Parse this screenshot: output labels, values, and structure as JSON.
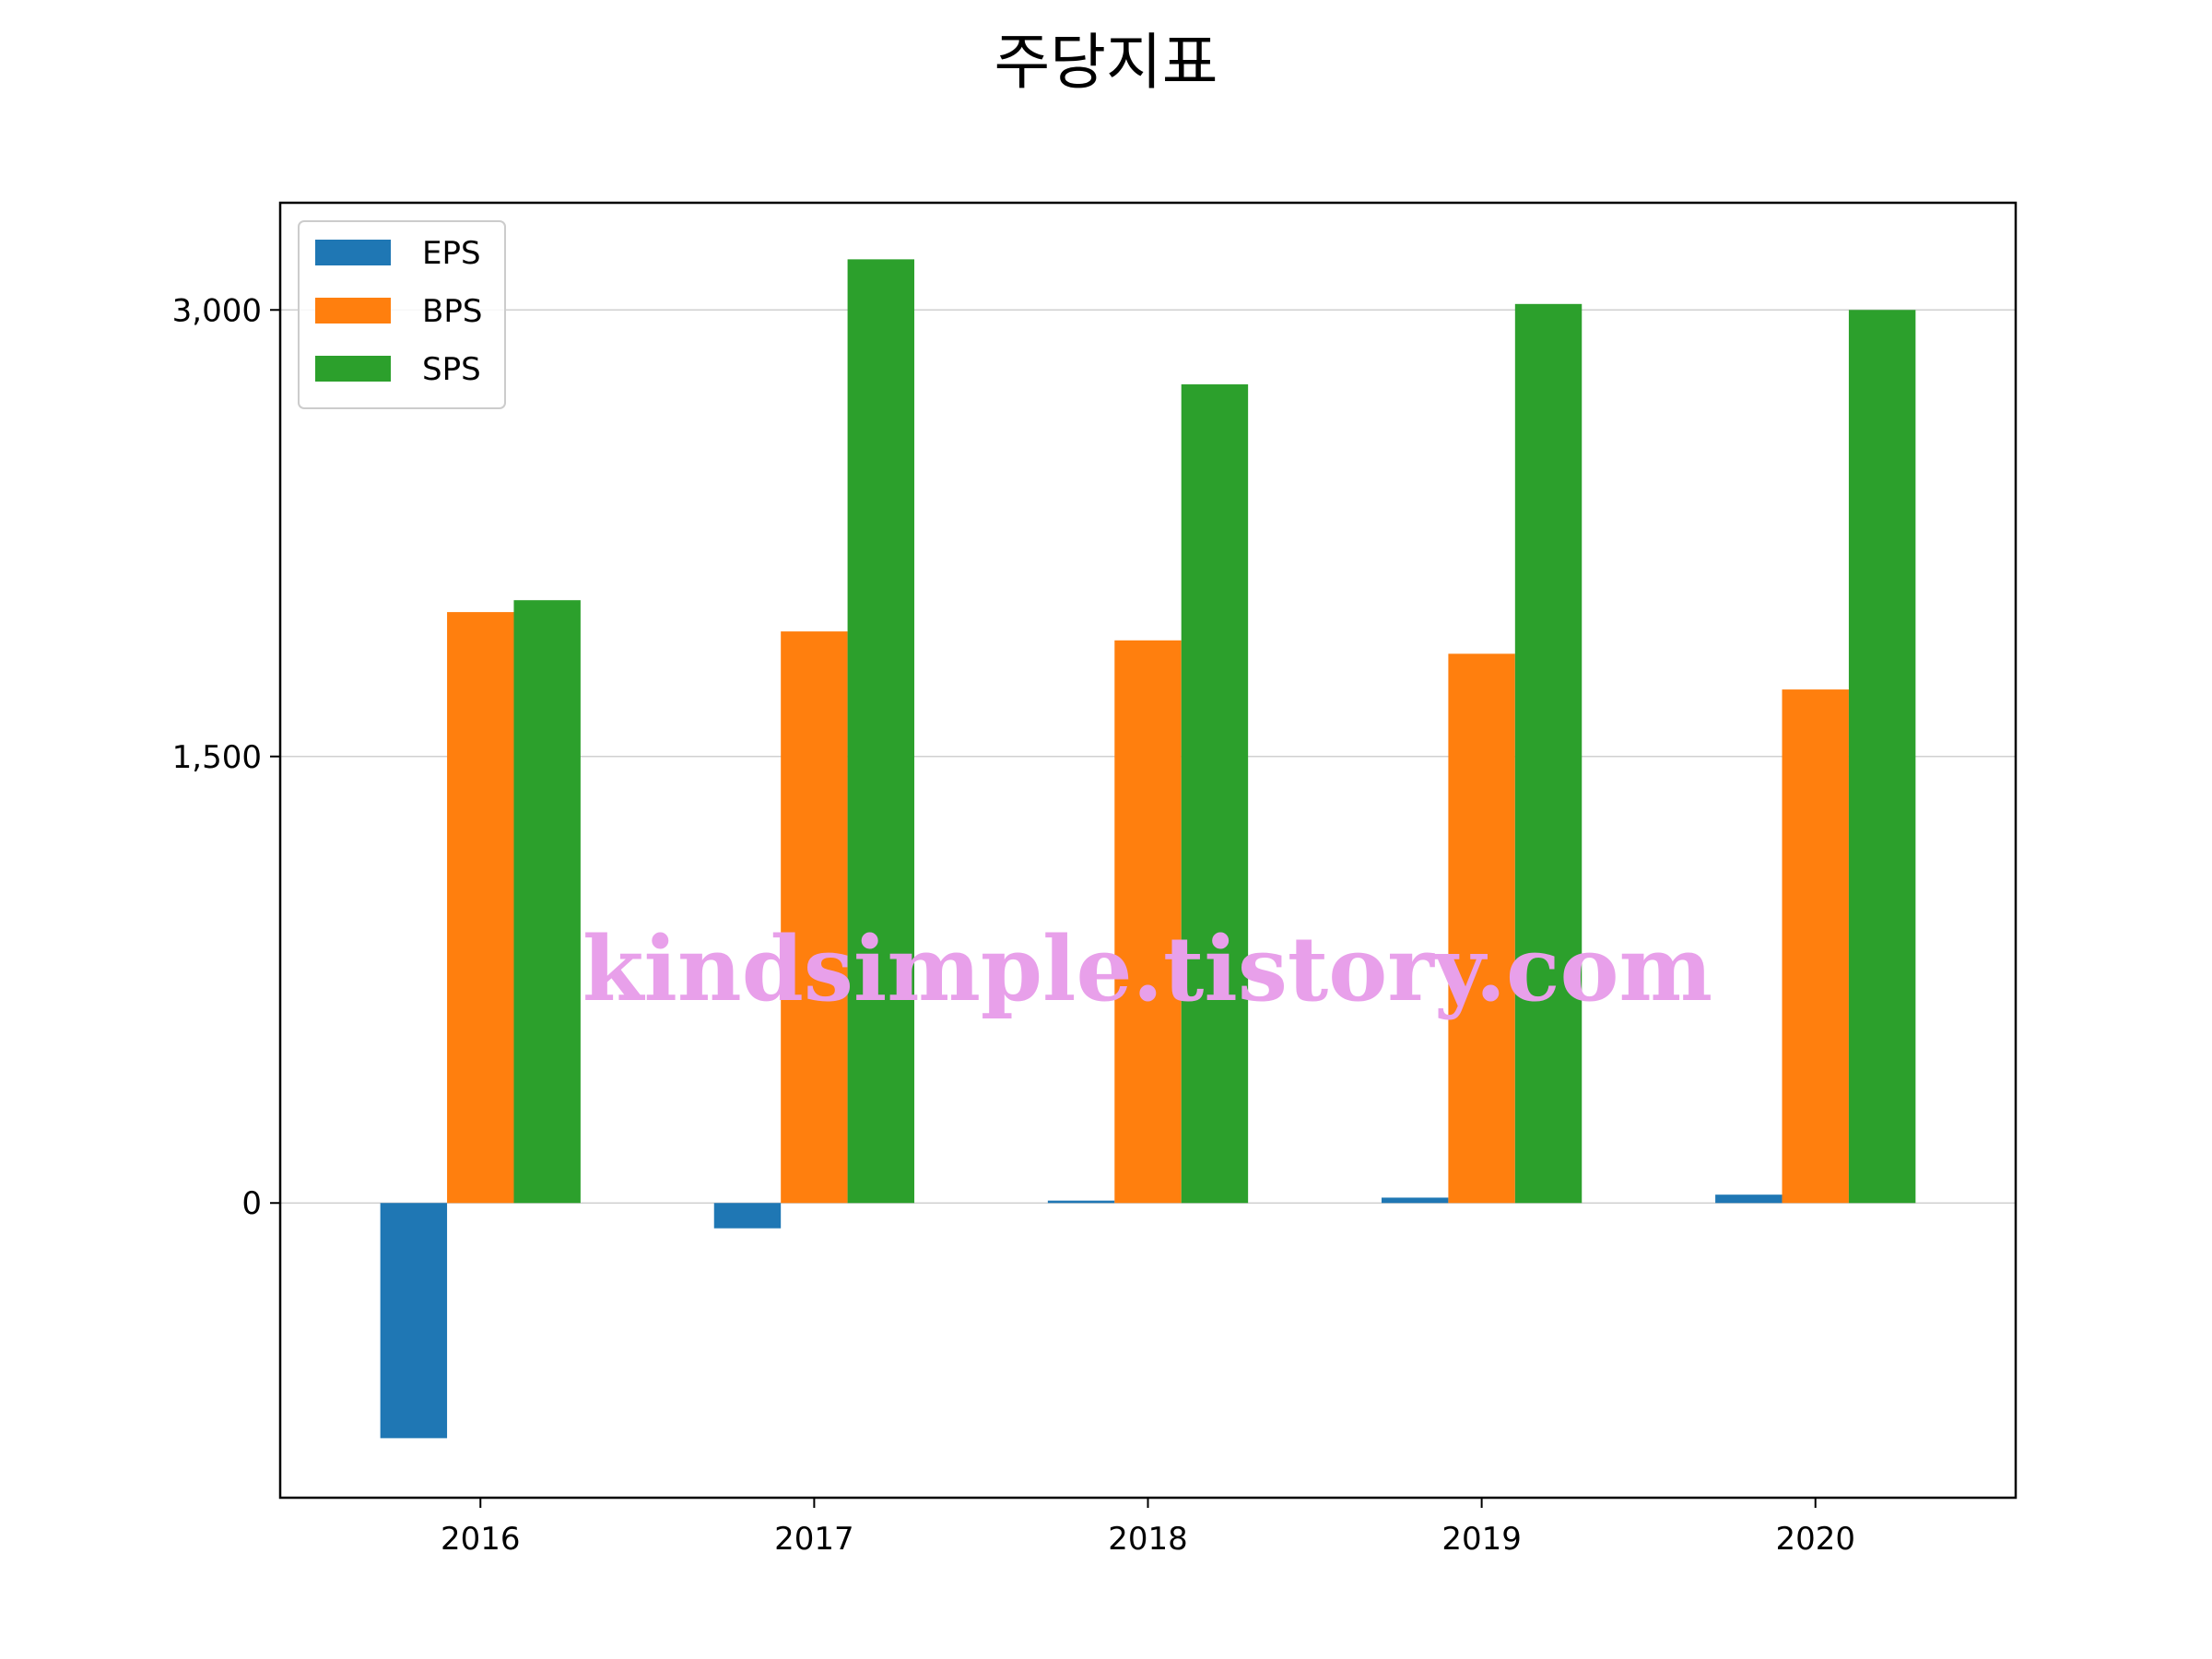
{
  "chart_data": {
    "type": "bar",
    "title": "주당지표",
    "xlabel": "",
    "ylabel": "",
    "categories": [
      "2016",
      "2017",
      "2018",
      "2019",
      "2020"
    ],
    "series": [
      {
        "name": "EPS",
        "color": "#1f77b4",
        "values": [
          -790,
          -85,
          8,
          18,
          28
        ]
      },
      {
        "name": "BPS",
        "color": "#ff7f0e",
        "values": [
          1985,
          1920,
          1890,
          1845,
          1725
        ]
      },
      {
        "name": "SPS",
        "color": "#2ca02c",
        "values": [
          2025,
          3170,
          2750,
          3020,
          3000
        ]
      }
    ],
    "ylim": [
      -990,
      3360
    ],
    "yticks": [
      0,
      1500,
      3000
    ],
    "ytick_labels": [
      "0",
      "1,500",
      "3,000"
    ],
    "grid": "y",
    "legend": "top-left"
  },
  "watermark": "kindsimple.tistory.com"
}
